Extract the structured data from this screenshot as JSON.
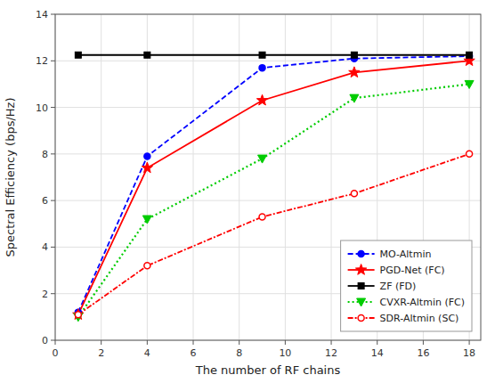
{
  "chart_data": {
    "type": "line",
    "xlabel": "The number of RF chains",
    "ylabel": "Spectral Efficiency (bps/Hz)",
    "x": [
      1,
      4,
      9,
      13,
      18
    ],
    "series": [
      {
        "name": "MO-Altmin",
        "color": "#0000FF",
        "marker": "circle",
        "line_style": "dashed",
        "values": [
          1.2,
          7.9,
          11.7,
          12.1,
          12.2
        ]
      },
      {
        "name": "PGD-Net (FC)",
        "color": "#FF0000",
        "marker": "star",
        "line_style": "solid",
        "values": [
          1.1,
          7.4,
          10.3,
          11.5,
          12.0
        ]
      },
      {
        "name": "ZF (FD)",
        "color": "#000000",
        "marker": "square",
        "line_style": "solid",
        "values": [
          12.25,
          12.25,
          12.25,
          12.25,
          12.25
        ]
      },
      {
        "name": "CVXR-Altmin (FC)",
        "color": "#00CC00",
        "marker": "triangle-down",
        "line_style": "dotted",
        "values": [
          1.0,
          5.2,
          7.8,
          10.4,
          11.0
        ]
      },
      {
        "name": "SDR-Altmin (SC)",
        "color": "#FF0000",
        "marker": "open-circle",
        "line_style": "dashdot",
        "values": [
          1.1,
          3.2,
          5.3,
          6.3,
          8.0
        ]
      }
    ],
    "xlim": [
      0,
      18.5
    ],
    "ylim": [
      0,
      14
    ],
    "xticks": [
      0,
      2,
      4,
      6,
      8,
      10,
      12,
      14,
      16,
      18
    ],
    "yticks": [
      0,
      2,
      4,
      6,
      8,
      10,
      12,
      14
    ],
    "grid": true,
    "legend": "lower right"
  }
}
